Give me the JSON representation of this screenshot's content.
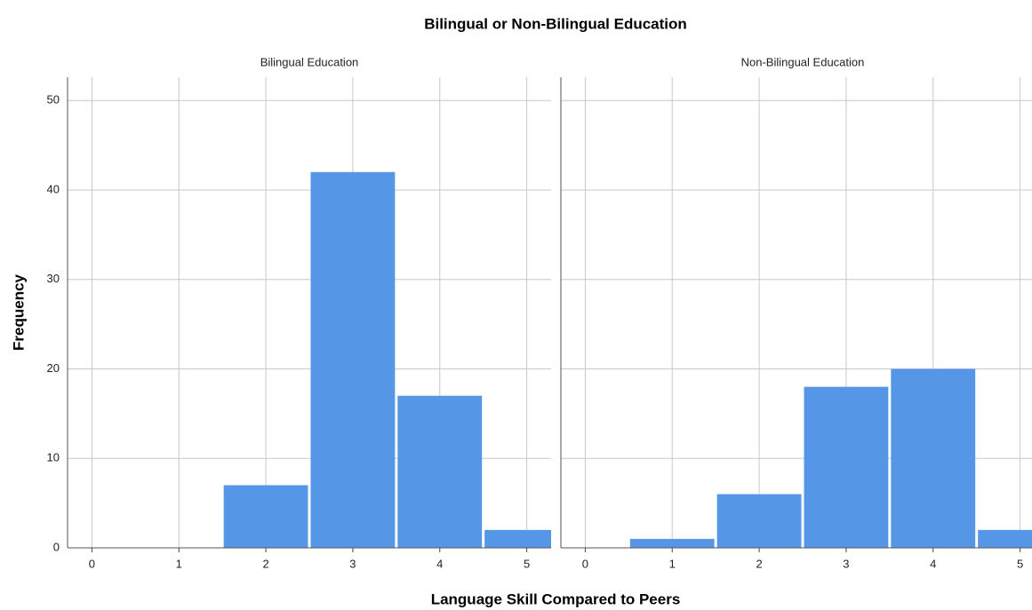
{
  "chart_data": {
    "type": "histogram",
    "title": "Bilingual or Non-Bilingual Education",
    "xlabel": "Language Skill Compared to Peers",
    "ylabel": "Frequency",
    "bins": [
      -0.5,
      0.5,
      1.5,
      2.5,
      3.5,
      4.5,
      5.5
    ],
    "xlim": [
      -0.28,
      5.28
    ],
    "xticks": [
      0,
      1,
      2,
      3,
      4,
      5
    ],
    "ylim": [
      0,
      52.6
    ],
    "yticks": [
      0,
      10,
      20,
      30,
      40,
      50
    ],
    "color": "#5596e6",
    "grid": true,
    "panels": [
      {
        "title": "Bilingual Education",
        "counts": [
          0,
          0,
          7,
          42,
          17,
          2
        ]
      },
      {
        "title": "Non-Bilingual Education",
        "counts": [
          0,
          1,
          6,
          18,
          20,
          2
        ]
      }
    ]
  }
}
